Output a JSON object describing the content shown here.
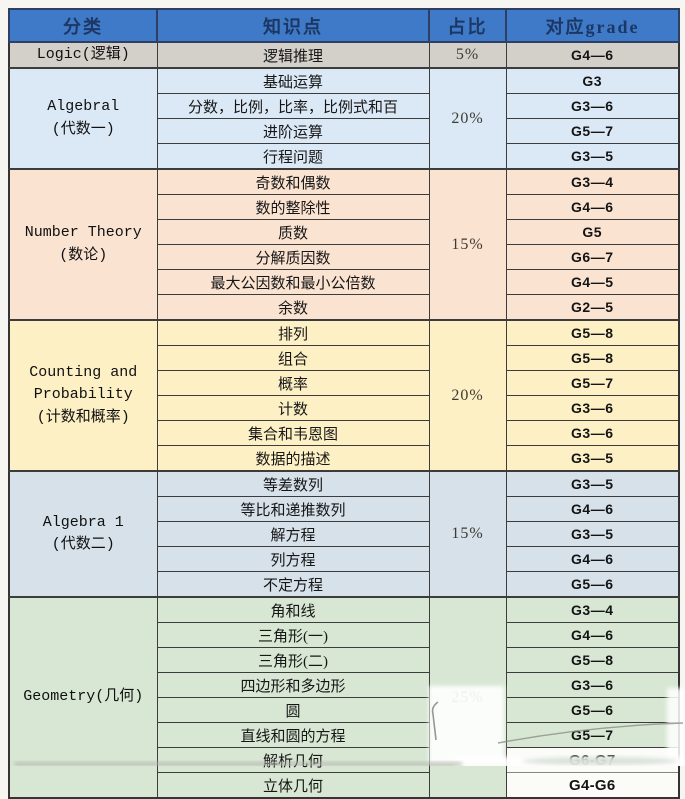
{
  "page": {
    "background": "#f6f5f2"
  },
  "table": {
    "border_color": "#3c3c3c",
    "header": {
      "bg": "#3e7ac7",
      "text_color": "#1c3763",
      "columns": [
        "分类",
        "知识点",
        "占比",
        "对应grade"
      ]
    },
    "sections": [
      {
        "name": "logic",
        "bg": "#d3d0ca",
        "category_lines": [
          "Logic(逻辑)"
        ],
        "percent": "5%",
        "rows": [
          {
            "topic": "逻辑推理",
            "grade": "G4—6"
          }
        ]
      },
      {
        "name": "algebra-one",
        "bg": "#dbe9f6",
        "category_lines": [
          "Algebral",
          "(代数一)"
        ],
        "percent": "20%",
        "rows": [
          {
            "topic": "基础运算",
            "grade": "G3"
          },
          {
            "topic": "分数，比例，比率，比例式和百",
            "grade": "G3—6"
          },
          {
            "topic": "进阶运算",
            "grade": "G5—7"
          },
          {
            "topic": "行程问题",
            "grade": "G3—5"
          }
        ]
      },
      {
        "name": "number-theory",
        "bg": "#fbe3d1",
        "category_lines": [
          "Number Theory",
          "(数论)"
        ],
        "percent": "15%",
        "rows": [
          {
            "topic": "奇数和偶数",
            "grade": "G3—4"
          },
          {
            "topic": "数的整除性",
            "grade": "G4—6"
          },
          {
            "topic": "质数",
            "grade": "G5"
          },
          {
            "topic": "分解质因数",
            "grade": "G6—7"
          },
          {
            "topic": "最大公因数和最小公倍数",
            "grade": "G4—5"
          },
          {
            "topic": "余数",
            "grade": "G2—5"
          }
        ]
      },
      {
        "name": "counting-probability",
        "bg": "#fdf0c5",
        "category_lines": [
          "Counting and",
          "Probability",
          "(计数和概率)"
        ],
        "percent": "20%",
        "rows": [
          {
            "topic": "排列",
            "grade": "G5—8"
          },
          {
            "topic": "组合",
            "grade": "G5—8"
          },
          {
            "topic": "概率",
            "grade": "G5—7"
          },
          {
            "topic": "计数",
            "grade": "G3—6"
          },
          {
            "topic": "集合和韦恩图",
            "grade": "G3—6"
          },
          {
            "topic": "数据的描述",
            "grade": "G3—5"
          }
        ]
      },
      {
        "name": "algebra-two",
        "bg": "#d6e1ea",
        "category_lines": [
          "Algebra 1",
          "(代数二)"
        ],
        "percent": "15%",
        "rows": [
          {
            "topic": "等差数列",
            "grade": "G3—5"
          },
          {
            "topic": "等比和递推数列",
            "grade": "G4—6"
          },
          {
            "topic": "解方程",
            "grade": "G3—5"
          },
          {
            "topic": "列方程",
            "grade": "G4—6"
          },
          {
            "topic": "不定方程",
            "grade": "G5—6"
          }
        ]
      },
      {
        "name": "geometry",
        "bg": "#d7e7d3",
        "category_lines": [
          "Geometry(几何)"
        ],
        "percent": "25%",
        "rows": [
          {
            "topic": "角和线",
            "grade": "G3—4"
          },
          {
            "topic": "三角形(一)",
            "grade": "G4—6"
          },
          {
            "topic": "三角形(二)",
            "grade": "G5—8"
          },
          {
            "topic": "四边形和多边形",
            "grade": "G3—6"
          },
          {
            "topic": "圆",
            "grade": "G5—6"
          },
          {
            "topic": "直线和圆的方程",
            "grade": "G5—7"
          },
          {
            "topic": "解析几何",
            "grade": "G6-G7",
            "patched": true
          },
          {
            "topic": "立体几何",
            "grade": "G4-G6",
            "patched": true
          }
        ]
      }
    ]
  }
}
